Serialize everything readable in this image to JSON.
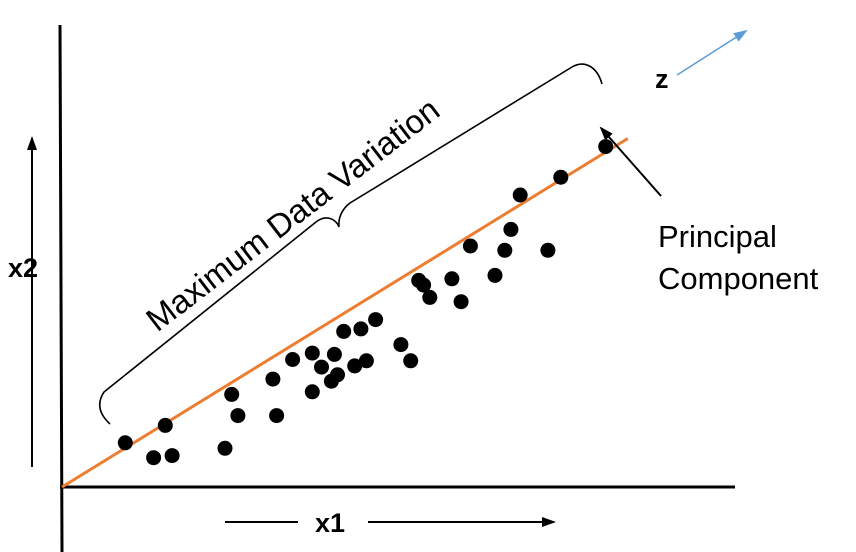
{
  "labels": {
    "x_axis": "x1",
    "y_axis": "x2",
    "direction": "z",
    "principal_component_line1": "Principal",
    "principal_component_line2": "Component",
    "variation": "Maximum Data Variation"
  },
  "colors": {
    "axes": "#000000",
    "points": "#000000",
    "principal_line": "#ED7D31",
    "direction_arrow": "#5B9BD5",
    "text": "#000000"
  },
  "chart_data": {
    "type": "scatter",
    "xlabel": "x1",
    "ylabel": "x2",
    "points": [
      [
        1.03,
        1.04
      ],
      [
        1.49,
        0.69
      ],
      [
        1.79,
        0.74
      ],
      [
        1.68,
        1.45
      ],
      [
        2.65,
        0.91
      ],
      [
        2.76,
        2.18
      ],
      [
        2.86,
        1.68
      ],
      [
        3.43,
        2.54
      ],
      [
        3.49,
        1.68
      ],
      [
        3.75,
        3.0
      ],
      [
        4.07,
        3.15
      ],
      [
        4.07,
        2.24
      ],
      [
        4.22,
        2.82
      ],
      [
        4.38,
        2.49
      ],
      [
        4.43,
        3.12
      ],
      [
        4.48,
        2.64
      ],
      [
        4.58,
        3.66
      ],
      [
        4.86,
        3.72
      ],
      [
        4.76,
        2.85
      ],
      [
        4.95,
        2.97
      ],
      [
        5.1,
        3.94
      ],
      [
        5.51,
        3.35
      ],
      [
        5.67,
        2.97
      ],
      [
        5.8,
        4.86
      ],
      [
        5.88,
        4.75
      ],
      [
        5.98,
        4.46
      ],
      [
        6.34,
        4.9
      ],
      [
        6.49,
        4.36
      ],
      [
        6.64,
        5.67
      ],
      [
        7.04,
        4.98
      ],
      [
        7.2,
        5.57
      ],
      [
        7.3,
        6.06
      ],
      [
        7.45,
        6.87
      ],
      [
        7.9,
        5.57
      ],
      [
        8.11,
        7.29
      ],
      [
        8.84,
        8.01
      ]
    ],
    "principal_component": {
      "from": [
        0,
        0
      ],
      "to": [
        9.2,
        8.2
      ]
    }
  }
}
